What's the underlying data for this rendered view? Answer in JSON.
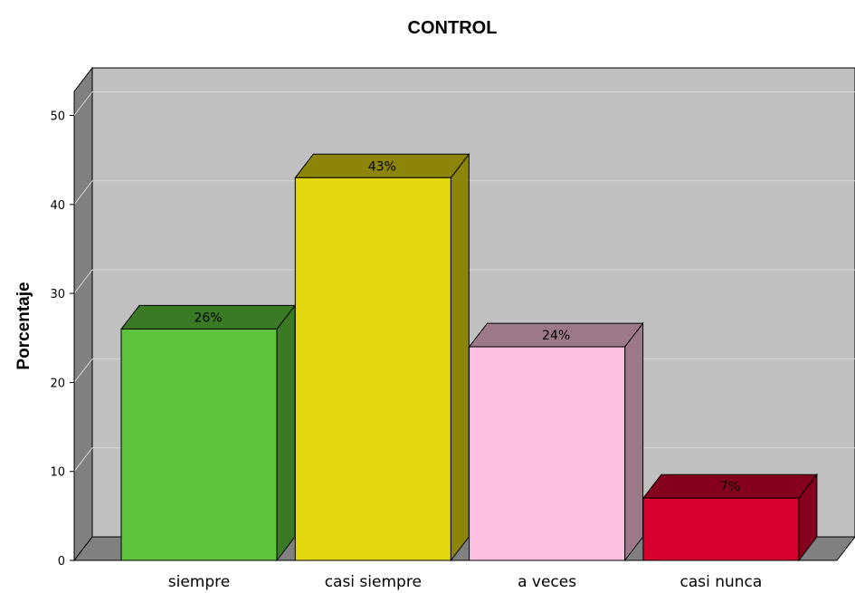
{
  "chart_data": {
    "type": "bar",
    "title": "CONTROL",
    "xlabel": "",
    "ylabel": "Porcentaje",
    "categories": [
      "siempre",
      "casi siempre",
      "a veces",
      "casi nunca"
    ],
    "values": [
      26,
      43,
      24,
      7
    ],
    "data_labels": [
      "26%",
      "43%",
      "24%",
      "7%"
    ],
    "ylim": [
      0,
      52
    ],
    "yticks": [
      "0",
      "10",
      "20",
      "30",
      "40",
      "50"
    ],
    "grid": true,
    "legend": "none",
    "colors": {
      "bars": [
        "#5ec43b",
        "#e3d80f",
        "#fcc1e0",
        "#d6002f"
      ],
      "bar_tops": [
        "#3a7a24",
        "#8c850a",
        "#9d7888",
        "#85001d"
      ],
      "bar_sides": [
        "#3a7a24",
        "#8c850a",
        "#9d7888",
        "#85001d"
      ],
      "plot_background": "#c0c0c0",
      "wall_left": "#808080",
      "floor": "#808080",
      "gridline": "#d8d8d8"
    }
  }
}
